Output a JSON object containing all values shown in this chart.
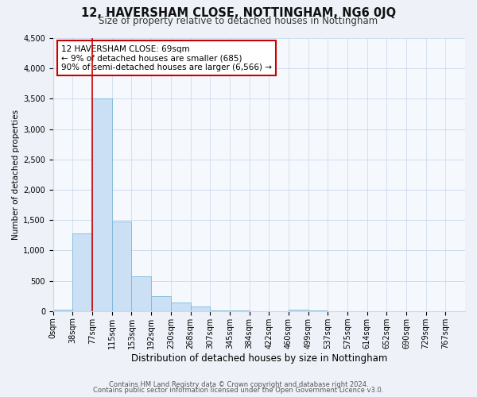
{
  "title": "12, HAVERSHAM CLOSE, NOTTINGHAM, NG6 0JQ",
  "subtitle": "Size of property relative to detached houses in Nottingham",
  "xlabel": "Distribution of detached houses by size in Nottingham",
  "ylabel": "Number of detached properties",
  "bar_labels": [
    "0sqm",
    "38sqm",
    "77sqm",
    "115sqm",
    "153sqm",
    "192sqm",
    "230sqm",
    "268sqm",
    "307sqm",
    "345sqm",
    "384sqm",
    "422sqm",
    "460sqm",
    "499sqm",
    "537sqm",
    "575sqm",
    "614sqm",
    "652sqm",
    "690sqm",
    "729sqm",
    "767sqm"
  ],
  "bar_heights": [
    30,
    1280,
    3500,
    1470,
    570,
    240,
    140,
    80,
    15,
    5,
    2,
    1,
    30,
    5,
    2,
    1,
    1,
    1,
    1,
    1,
    1
  ],
  "bar_color": "#cce0f5",
  "bar_edge_color": "#7ab8d8",
  "property_line_color": "#cc0000",
  "property_line_x": 2,
  "annotation_box_text": "12 HAVERSHAM CLOSE: 69sqm\n← 9% of detached houses are smaller (685)\n90% of semi-detached houses are larger (6,566) →",
  "annotation_box_facecolor": "white",
  "annotation_box_edgecolor": "#cc0000",
  "ylim": [
    0,
    4500
  ],
  "yticks": [
    0,
    500,
    1000,
    1500,
    2000,
    2500,
    3000,
    3500,
    4000,
    4500
  ],
  "footer1": "Contains HM Land Registry data © Crown copyright and database right 2024.",
  "footer2": "Contains public sector information licensed under the Open Government Licence v3.0.",
  "bg_color": "#eef2f8",
  "plot_bg_color": "#f5f8fd",
  "grid_color": "#c8d8ea",
  "title_fontsize": 10.5,
  "subtitle_fontsize": 8.5,
  "xlabel_fontsize": 8.5,
  "ylabel_fontsize": 7.5,
  "tick_fontsize": 7,
  "annot_fontsize": 7.5,
  "footer_fontsize": 6
}
